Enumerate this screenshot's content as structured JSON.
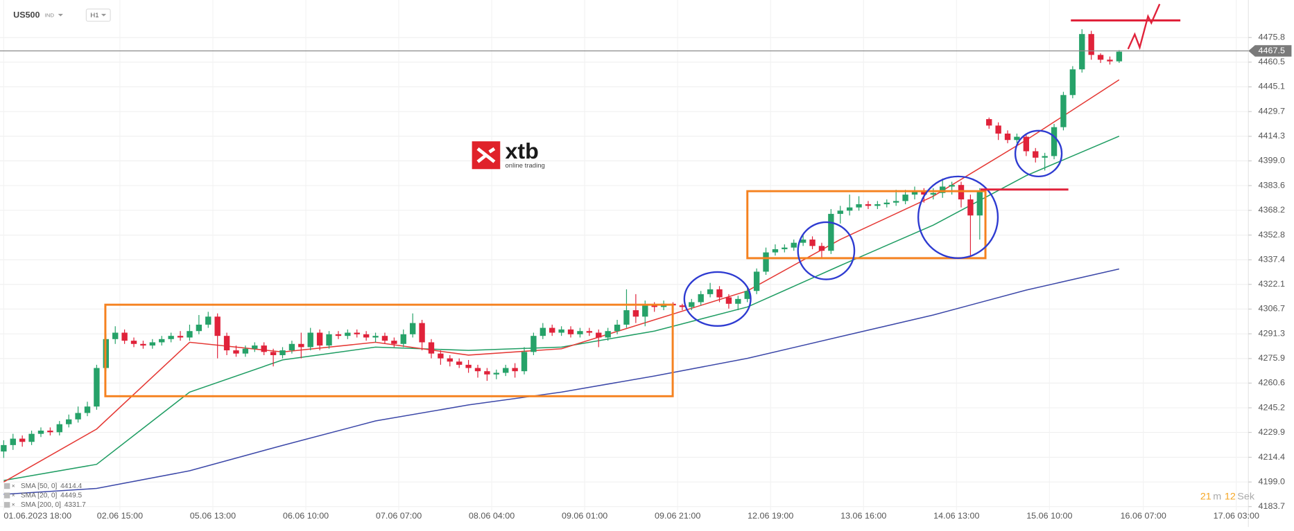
{
  "chart_data": {
    "type": "candlestick",
    "symbol": "US500",
    "market": "IND",
    "interval": "H1",
    "logo": {
      "name": "xtb",
      "tagline": "online trading"
    },
    "timer": {
      "minutes": "21",
      "minutes_unit": "m",
      "seconds": "12",
      "seconds_unit": "Sek"
    },
    "up_color": "#26a269",
    "down_color": "#e0223a",
    "grid": true,
    "last_price": 4467.5,
    "ylim": [
      4181.2,
      4499.2
    ],
    "yticks": [
      4183.7,
      {
        "value": 4199,
        "label": "4199.0"
      },
      4214.4,
      4229.9,
      4245.2,
      4260.6,
      4275.9,
      4291.3,
      4306.7,
      4322.1,
      4337.4,
      4352.8,
      4368.2,
      4383.6,
      {
        "value": 4399,
        "label": "4399.0"
      },
      4414.3,
      4429.7,
      4445.1,
      4460.5,
      4475.8
    ],
    "xlim": [
      -0.4,
      133.9
    ],
    "xticks": [
      {
        "value": 0,
        "label": "01.06.2023 18:00"
      },
      {
        "value": 12.5,
        "label": "02.06 15:00"
      },
      {
        "value": 22.5,
        "label": "05.06 13:00"
      },
      {
        "value": 32.5,
        "label": "06.06 10:00"
      },
      {
        "value": 42.5,
        "label": "07.06 07:00"
      },
      {
        "value": 52.5,
        "label": "08.06 04:00"
      },
      {
        "value": 62.5,
        "label": "09.06 01:00"
      },
      {
        "value": 72.5,
        "label": "09.06 21:00"
      },
      {
        "value": 82.5,
        "label": "12.06 19:00"
      },
      {
        "value": 92.5,
        "label": "13.06 16:00"
      },
      {
        "value": 102.5,
        "label": "14.06 13:00"
      },
      {
        "value": 112.5,
        "label": "15.06 10:00"
      },
      {
        "value": 122.6,
        "label": "16.06 07:00"
      },
      {
        "value": 132.6,
        "label": "17.06 03:00"
      }
    ],
    "candles": {
      "open": [
        4218,
        4222,
        4226,
        4224,
        4229,
        4231,
        4230,
        4235,
        4238,
        4242,
        4246,
        4270,
        4288,
        4292,
        4287,
        4285,
        4284,
        4286,
        4288,
        4290,
        4289,
        4293,
        4297,
        4302,
        4290,
        4281,
        4279,
        4282,
        4284,
        4280,
        4278,
        4281,
        4285,
        4283,
        4292,
        4284,
        4291,
        4290,
        4292,
        4291,
        4289,
        4290,
        4287,
        4285,
        4291,
        4298,
        4286,
        4279,
        4276,
        4274,
        4272,
        4270,
        4268,
        4266,
        4267,
        4270,
        4268,
        4280,
        4290,
        4295,
        4292,
        4294,
        4291,
        4293,
        4292,
        4289,
        4293,
        4297,
        4306,
        4302,
        4309,
        4308,
        4310,
        4309,
        4308,
        4311,
        4316,
        4319,
        4314,
        4310,
        4313,
        4318,
        4330,
        4342,
        4344,
        4345,
        4348,
        4350,
        4346,
        4343,
        4366,
        4368,
        4370,
        4372,
        4371,
        4372,
        4373,
        4374,
        4378,
        4380,
        4378,
        4379,
        4383,
        4384,
        4375,
        4365,
        4425,
        4421,
        4416,
        4412,
        4414,
        4405,
        4401,
        4402,
        4420,
        4440,
        4456,
        4478,
        4465,
        4462,
        4461
      ],
      "high": [
        4225,
        4229,
        4228,
        4231,
        4233,
        4233,
        4237,
        4241,
        4246,
        4249,
        4272,
        4291,
        4296,
        4294,
        4289,
        4287,
        4288,
        4290,
        4292,
        4293,
        4297,
        4303,
        4305,
        4304,
        4292,
        4284,
        4284,
        4286,
        4286,
        4282,
        4283,
        4287,
        4292,
        4295,
        4294,
        4293,
        4293,
        4294,
        4294,
        4293,
        4292,
        4292,
        4289,
        4294,
        4304,
        4300,
        4288,
        4281,
        4278,
        4276,
        4275,
        4272,
        4270,
        4269,
        4272,
        4273,
        4283,
        4292,
        4298,
        4297,
        4296,
        4296,
        4295,
        4295,
        4294,
        4295,
        4300,
        4319,
        4316,
        4312,
        4311,
        4312,
        4311,
        4310,
        4313,
        4318,
        4323,
        4321,
        4316,
        4315,
        4321,
        4332,
        4345,
        4347,
        4347,
        4350,
        4353,
        4352,
        4348,
        4369,
        4371,
        4378,
        4377,
        4374,
        4374,
        4375,
        4381,
        4381,
        4383,
        4382,
        4382,
        4388,
        4386,
        4386,
        4378,
        4382,
        4426,
        4423,
        4418,
        4416,
        4416,
        4407,
        4404,
        4422,
        4442,
        4458,
        4481,
        4480,
        4466,
        4464,
        4468
      ],
      "low": [
        4214,
        4219,
        4221,
        4222,
        4227,
        4228,
        4228,
        4233,
        4236,
        4240,
        4244,
        4268,
        4285,
        4285,
        4283,
        4282,
        4282,
        4284,
        4286,
        4287,
        4287,
        4291,
        4295,
        4276,
        4278,
        4277,
        4277,
        4280,
        4278,
        4271,
        4276,
        4279,
        4276,
        4281,
        4281,
        4282,
        4288,
        4288,
        4289,
        4287,
        4286,
        4285,
        4283,
        4283,
        4289,
        4281,
        4276,
        4272,
        4271,
        4270,
        4267,
        4264,
        4262,
        4263,
        4265,
        4264,
        4266,
        4278,
        4288,
        4290,
        4290,
        4289,
        4289,
        4290,
        4283,
        4287,
        4291,
        4295,
        4298,
        4296,
        4305,
        4306,
        4307,
        4306,
        4306,
        4309,
        4314,
        4311,
        4307,
        4306,
        4311,
        4316,
        4328,
        4340,
        4342,
        4343,
        4346,
        4344,
        4338,
        4341,
        4360,
        4365,
        4368,
        4369,
        4369,
        4370,
        4371,
        4372,
        4375,
        4373,
        4375,
        4376,
        4378,
        4370,
        4340,
        4350,
        4419,
        4412,
        4410,
        4410,
        4402,
        4398,
        4393,
        4400,
        4418,
        4438,
        4454,
        4462,
        4460,
        4459,
        4460
      ],
      "close": [
        4222,
        4226,
        4224,
        4229,
        4231,
        4230,
        4235,
        4238,
        4242,
        4246,
        4270,
        4288,
        4292,
        4287,
        4285,
        4284,
        4286,
        4288,
        4290,
        4289,
        4293,
        4297,
        4302,
        4290,
        4281,
        4279,
        4282,
        4284,
        4280,
        4278,
        4281,
        4285,
        4283,
        4292,
        4284,
        4291,
        4290,
        4292,
        4291,
        4289,
        4290,
        4287,
        4285,
        4291,
        4298,
        4286,
        4279,
        4276,
        4274,
        4272,
        4270,
        4268,
        4266,
        4267,
        4270,
        4268,
        4280,
        4290,
        4295,
        4292,
        4294,
        4291,
        4293,
        4292,
        4289,
        4293,
        4297,
        4306,
        4302,
        4309,
        4308,
        4310,
        4309,
        4308,
        4311,
        4316,
        4319,
        4314,
        4310,
        4313,
        4318,
        4330,
        4342,
        4344,
        4345,
        4348,
        4350,
        4346,
        4343,
        4366,
        4368,
        4370,
        4372,
        4371,
        4372,
        4373,
        4374,
        4378,
        4380,
        4378,
        4379,
        4383,
        4384,
        4375,
        4365,
        4380,
        4421,
        4416,
        4412,
        4414,
        4405,
        4401,
        4402,
        4420,
        4440,
        4456,
        4478,
        4465,
        4462,
        4461,
        4467
      ]
    },
    "overlays": [
      {
        "name": "SMA [50, 0]",
        "color": "#1f9d63",
        "x": [
          0,
          10,
          20,
          30,
          40,
          50,
          60,
          70,
          80,
          90,
          100,
          110,
          120
        ],
        "values": [
          4200,
          4210,
          4255,
          4275,
          4283,
          4281,
          4283,
          4293,
          4308,
          4333.8,
          4359,
          4389.8,
          4414.4
        ]
      },
      {
        "name": "SMA [20, 0]",
        "color": "#e53935",
        "x": [
          0,
          10,
          20,
          30,
          40,
          50,
          60,
          70,
          80,
          90,
          100,
          110,
          120
        ],
        "values": [
          4199,
          4232,
          4286,
          4280,
          4286,
          4278,
          4282,
          4300,
          4318,
          4350,
          4377,
          4412,
          4449.5
        ]
      },
      {
        "name": "SMA [200, 0]",
        "color": "#3b47a8",
        "x": [
          0,
          10,
          20,
          30,
          40,
          50,
          60,
          70,
          80,
          90,
          100,
          110,
          120
        ],
        "values": [
          4191.3,
          4195,
          4206,
          4221.8,
          4237,
          4247,
          4255,
          4265,
          4276,
          4289.5,
          4303,
          4318.5,
          4331.7
        ]
      }
    ]
  }
}
